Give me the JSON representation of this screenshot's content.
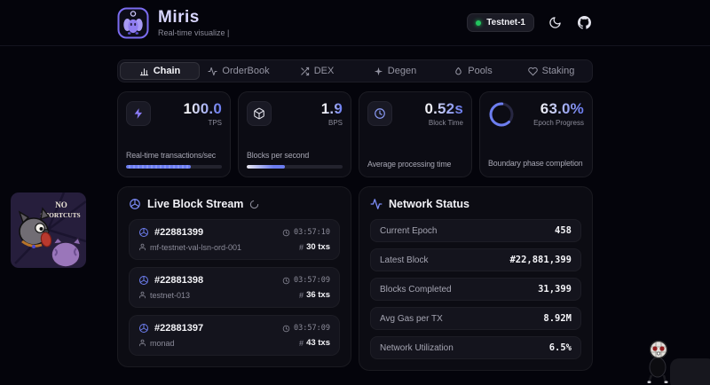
{
  "header": {
    "title": "Miris",
    "subtitle": "Real-time visualize |",
    "badge_label": "Testnet-1"
  },
  "active_tab": "Chain",
  "tabs": [
    {
      "label": "Chain",
      "icon": "bar-chart-icon"
    },
    {
      "label": "OrderBook",
      "icon": "activity-icon"
    },
    {
      "label": "DEX",
      "icon": "shuffle-icon"
    },
    {
      "label": "Degen",
      "icon": "sparkle-icon"
    },
    {
      "label": "Pools",
      "icon": "droplet-icon"
    },
    {
      "label": "Staking",
      "icon": "heart-icon"
    }
  ],
  "stats": [
    {
      "value": "100.0",
      "unit": "TPS",
      "description": "Real-time transactions/sec",
      "icon": "zap-icon",
      "progress_pct": 68
    },
    {
      "value": "1.9",
      "unit": "BPS",
      "description": "Blocks per second",
      "icon": "cube-icon",
      "progress_pct": 40
    },
    {
      "value": "0.52s",
      "unit": "Block Time",
      "description": "Average processing time",
      "icon": "clock-icon"
    },
    {
      "value": "63.0%",
      "unit": "Epoch Progress",
      "description": "Boundary phase completion",
      "icon": "progress-ring",
      "ring_pct": 63
    }
  ],
  "block_stream": {
    "title": "Live Block Stream",
    "blocks": [
      {
        "id": "#22881399",
        "time": "03:57:10",
        "proposer": "mf-testnet-val-lsn-ord-001",
        "txs": "30 txs"
      },
      {
        "id": "#22881398",
        "time": "03:57:09",
        "proposer": "testnet-013",
        "txs": "36 txs"
      },
      {
        "id": "#22881397",
        "time": "03:57:09",
        "proposer": "monad",
        "txs": "43 txs"
      }
    ]
  },
  "network_status": {
    "title": "Network Status",
    "rows": [
      {
        "label": "Current Epoch",
        "value": "458"
      },
      {
        "label": "Latest Block",
        "value": "#22,881,399"
      },
      {
        "label": "Blocks Completed",
        "value": "31,399"
      },
      {
        "label": "Avg Gas per TX",
        "value": "8.92M"
      },
      {
        "label": "Network Utilization",
        "value": "6.5%"
      }
    ]
  },
  "meme": {
    "line1": "NO",
    "line2": "SHORTCUTS"
  },
  "colors": {
    "accent": "#6d7ef0",
    "accent_light": "#8b9cf8",
    "status_green": "#22c55e",
    "background": "#04040b",
    "panel": "#0c0c13",
    "item": "#14141d",
    "muted_text": "#8b8b99"
  },
  "icon_glyphs": {
    "moon-icon": "crescent shape",
    "github-icon": "octocat mark",
    "bar-chart-icon": "3 vertical bars",
    "activity-icon": "pulse polyline",
    "shuffle-icon": "crossed arrows",
    "sparkle-icon": "4-point star",
    "droplet-icon": "water drop",
    "heart-icon": "heart outline",
    "zap-icon": "lightning bolt",
    "cube-icon": "3d box outline",
    "clock-icon": "circle with hands",
    "wheel-icon": "circle with 3 spokes",
    "refresh-icon": "partial circle arc",
    "user-icon": "head and shoulders",
    "hash-icon": "# glyph"
  }
}
